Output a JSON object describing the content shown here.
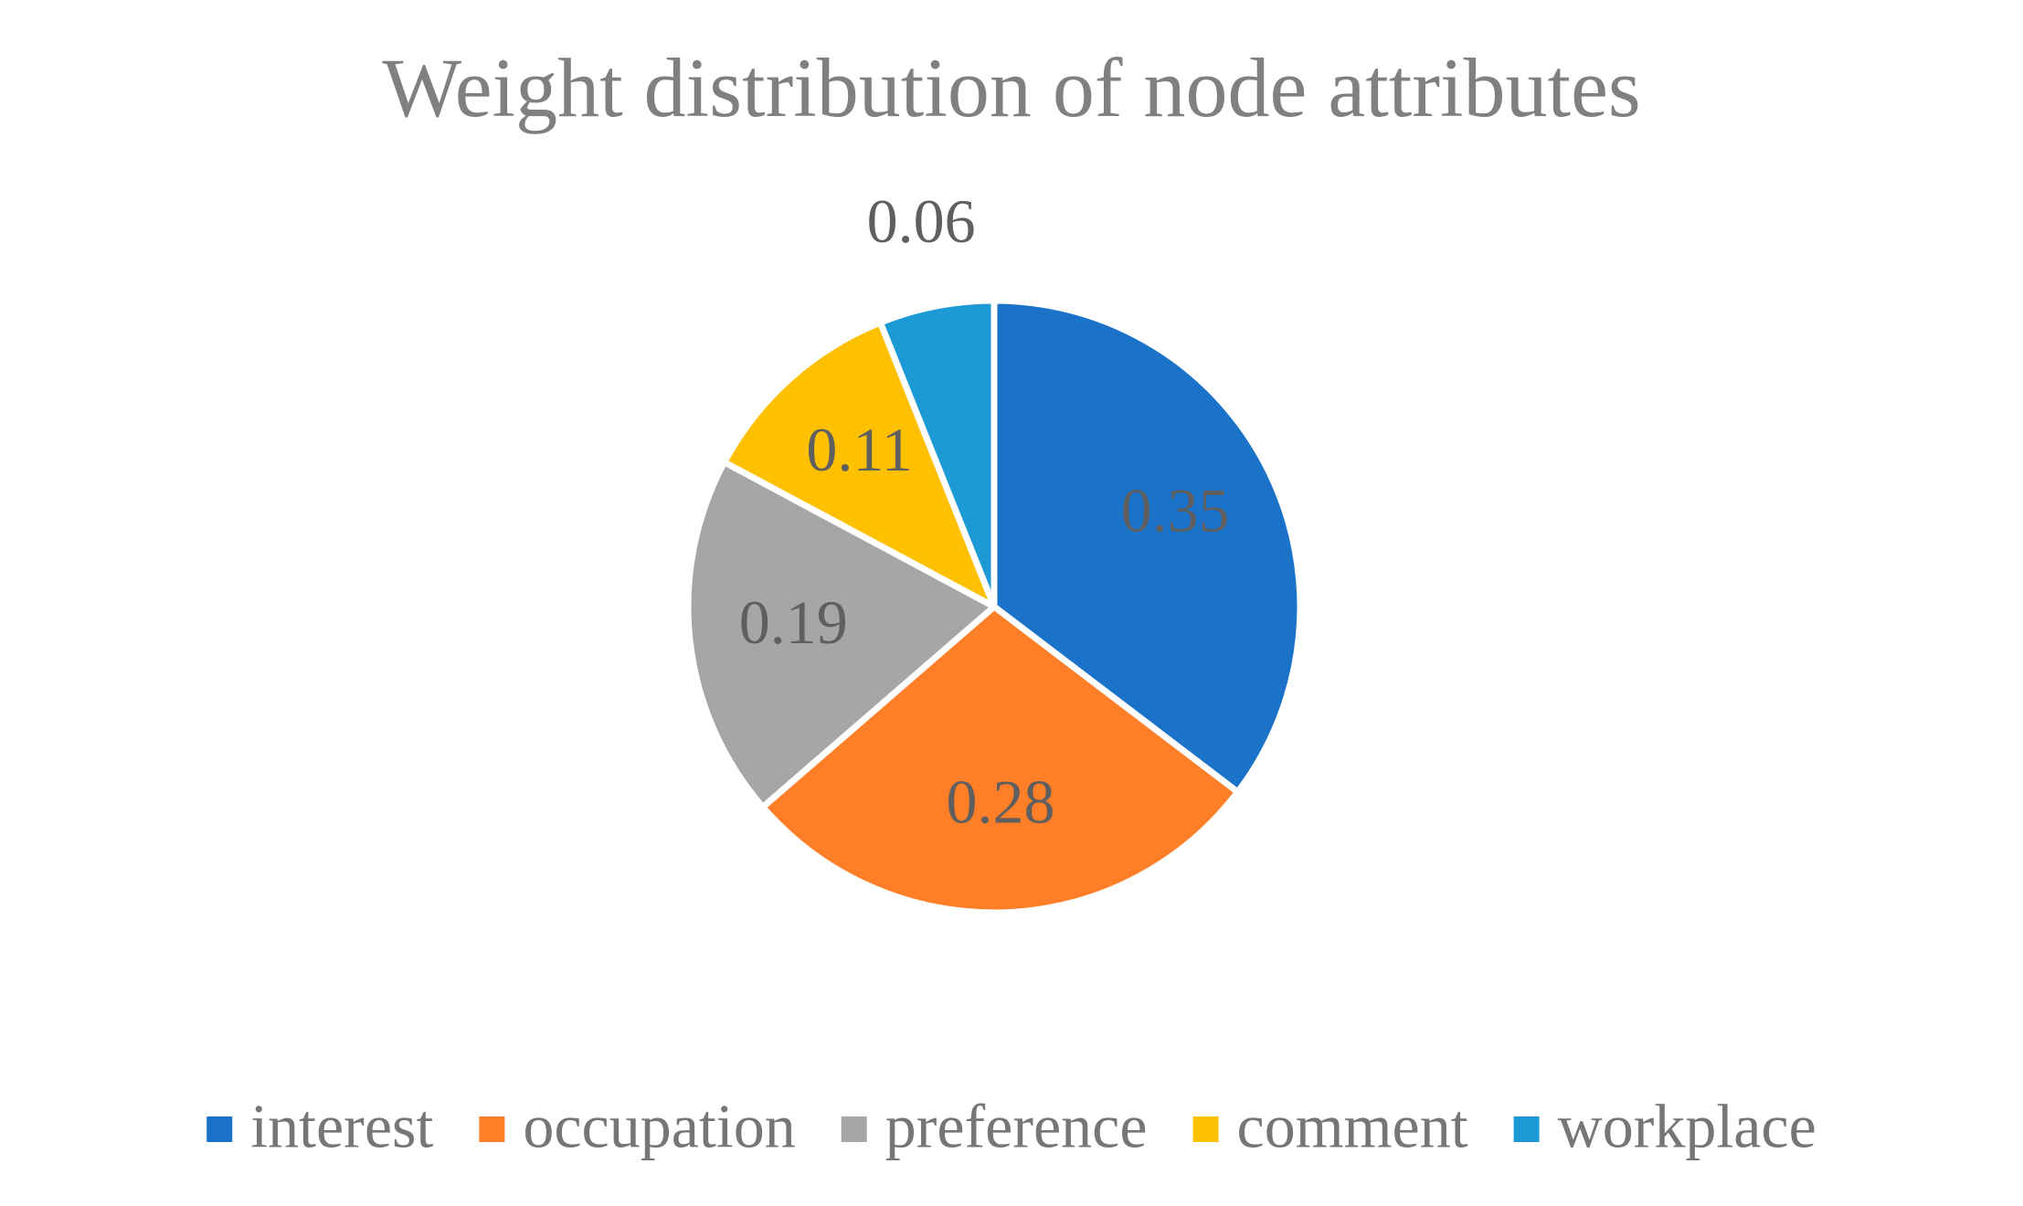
{
  "chart_data": {
    "type": "pie",
    "title": "Weight distribution  of node attributes",
    "categories": [
      "interest",
      "occupation",
      "preference",
      "comment",
      "workplace"
    ],
    "values": [
      0.35,
      0.28,
      0.19,
      0.11,
      0.06
    ],
    "colors": [
      "#1a72c9",
      "#fe7f27",
      "#a6a6a6",
      "#ffc000",
      "#1d9ad6"
    ],
    "legend": "bottom"
  }
}
